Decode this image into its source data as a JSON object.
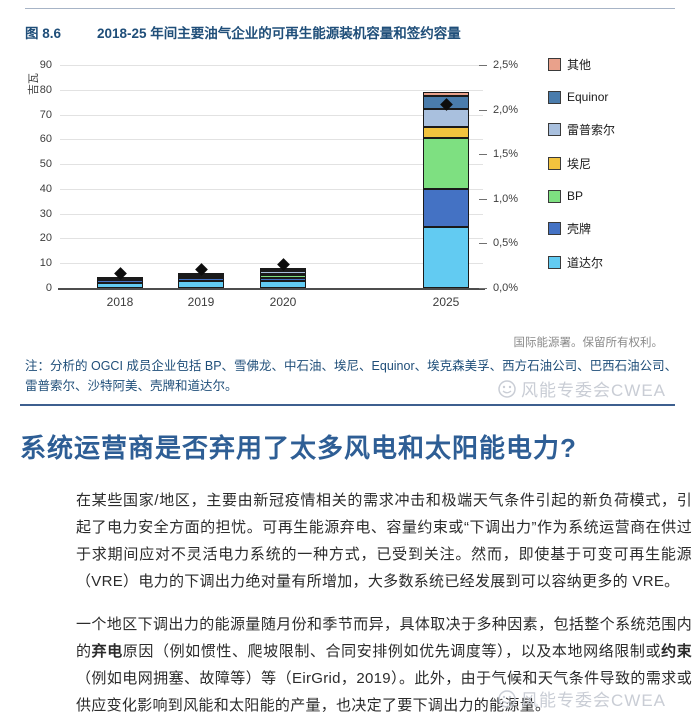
{
  "figure": {
    "label": "图 8.6",
    "title": "2018-25 年间主要油气企业的可再生能源装机容量和签约容量",
    "source": "国际能源署。保留所有权利。",
    "note": "注：分析的 OGCI 成员企业包括 BP、雪佛龙、中石油、埃尼、Equinor、埃克森美孚、西方石油公司、巴西石油公司、雷普索尔、沙特阿美、壳牌和道达尔。"
  },
  "chart_data": {
    "type": "bar",
    "stacked": true,
    "title": "2018-25 年间主要油气企业的可再生能源装机容量和签约容量",
    "categories": [
      "2018",
      "2019",
      "2020",
      "2025"
    ],
    "left_axis": {
      "label": "吉瓦",
      "min": 0,
      "max": 90,
      "step": 10
    },
    "right_axis": {
      "min": 0,
      "max": 2.5,
      "step": 0.5,
      "labels_bottom_to_top": [
        "0,0%",
        "0,5%",
        "1,0%",
        "1,5%",
        "2,0%",
        "2,5%"
      ]
    },
    "grid": true,
    "legend_position": "right",
    "series_bottom_to_top": [
      {
        "name": "道达尔",
        "color": "#62cbf2",
        "values": [
          2.2,
          3.0,
          3.0,
          24.5
        ]
      },
      {
        "name": "壳牌",
        "color": "#4472c4",
        "values": [
          1.2,
          1.3,
          0.9,
          15.5
        ]
      },
      {
        "name": "BP",
        "color": "#7ee081",
        "values": [
          0,
          0,
          1.4,
          20.5
        ]
      },
      {
        "name": "埃尼",
        "color": "#f2c33e",
        "values": [
          0,
          0.1,
          0.2,
          4.3
        ]
      },
      {
        "name": "雷普索尔",
        "color": "#a9c0de",
        "values": [
          0.4,
          0.8,
          1.2,
          7.5
        ]
      },
      {
        "name": "Equinor",
        "color": "#4a7cac",
        "values": [
          0.5,
          0.8,
          1.1,
          5.2
        ]
      },
      {
        "name": "其他",
        "color": "#e9a18b",
        "values": [
          0,
          0.1,
          0.1,
          1.8
        ]
      }
    ],
    "markers": {
      "shape": "diamond",
      "color": "#0d0d0d",
      "axis": "right",
      "values_percent": [
        0.16,
        0.21,
        0.26,
        2.06
      ]
    }
  },
  "watermark": {
    "text": "风能专委会CWEA"
  },
  "article": {
    "heading": "系统运营商是否弃用了太多风电和太阳能电力?",
    "paragraphs": [
      {
        "segments": [
          {
            "text": "在某些国家/地区，主要由新冠疫情相关的需求冲击和极端天气条件引起的新负荷模式，引起了电力安全方面的担忧。可再生能源弃电、容量约束或“下调出力”作为系统运营商在供过于求期间应对不灵活电力系统的一种方式，已受到关注。然而，即使基于可变可再生能源（VRE）电力的下调出力绝对量有所增加，大多数系统已经发展到可以容纳更多的 VRE。",
            "bold": false
          }
        ]
      },
      {
        "segments": [
          {
            "text": "一个地区下调出力的能源量随月份和季节而异，具体取决于多种因素，包括整个系统范围内的",
            "bold": false
          },
          {
            "text": "弃电",
            "bold": true
          },
          {
            "text": "原因（例如惯性、爬坡限制、合同安排例如优先调度等），以及本地网络限制或",
            "bold": false
          },
          {
            "text": "约束",
            "bold": true
          },
          {
            "text": "（例如电网拥塞、故障等）等（EirGrid，2019）。此外，由于气候和天气条件导致的需求或供应变化影响到风能和太阳能的产量，也决定了要下调出力的能源量。",
            "bold": false
          }
        ]
      }
    ]
  }
}
